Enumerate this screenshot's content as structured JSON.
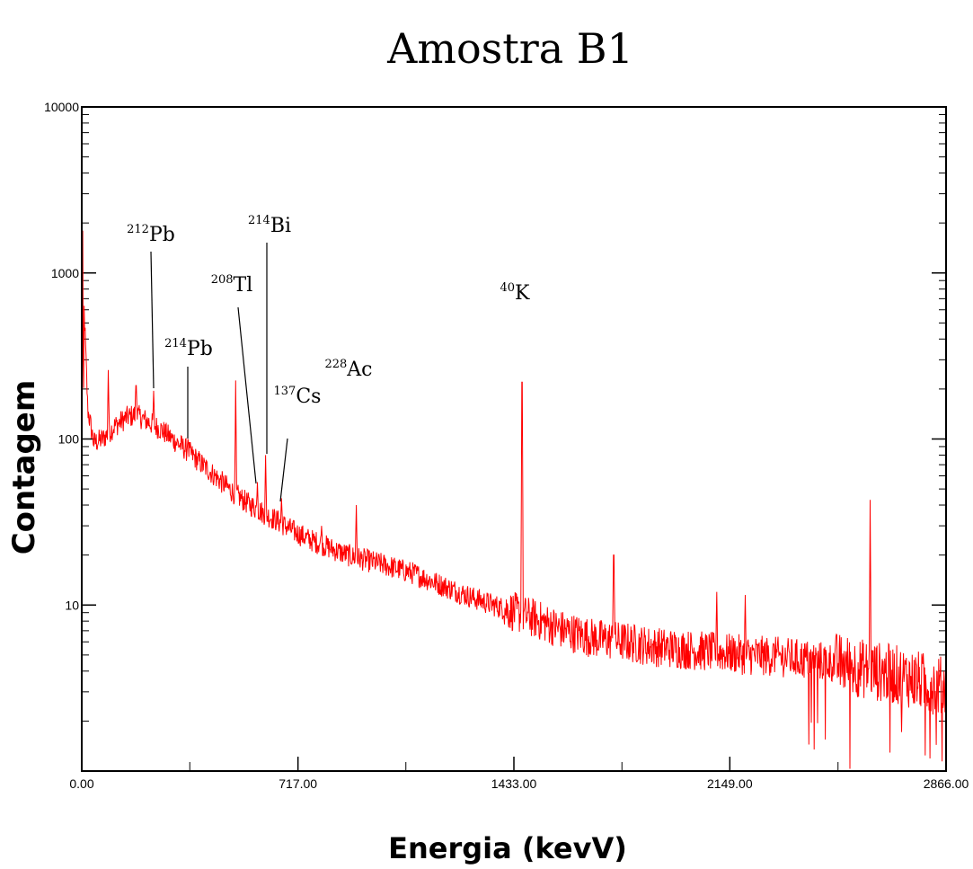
{
  "chart_data": {
    "type": "line",
    "title": "Amostra B1",
    "xlabel": "Energia (kevV)",
    "ylabel": "Contagem",
    "xlim": [
      0,
      2866
    ],
    "ylim": [
      1,
      10000
    ],
    "yscale": "log",
    "x_ticks": [
      "0.00",
      "717.00",
      "1433.00",
      "2149.00",
      "2866.00"
    ],
    "y_ticks": [
      "10000",
      "1000",
      "100",
      "10"
    ],
    "series": [
      {
        "color": "#ff0000",
        "baseline": [
          [
            0,
            2
          ],
          [
            8,
            600
          ],
          [
            20,
            150
          ],
          [
            40,
            95
          ],
          [
            70,
            100
          ],
          [
            110,
            120
          ],
          [
            150,
            135
          ],
          [
            180,
            140
          ],
          [
            210,
            130
          ],
          [
            260,
            115
          ],
          [
            300,
            100
          ],
          [
            350,
            85
          ],
          [
            400,
            70
          ],
          [
            450,
            58
          ],
          [
            500,
            48
          ],
          [
            550,
            41
          ],
          [
            600,
            36
          ],
          [
            650,
            32
          ],
          [
            700,
            28
          ],
          [
            750,
            25
          ],
          [
            800,
            23
          ],
          [
            850,
            21
          ],
          [
            900,
            19.5
          ],
          [
            1000,
            17.5
          ],
          [
            1100,
            15.5
          ],
          [
            1200,
            13
          ],
          [
            1300,
            11
          ],
          [
            1400,
            9.5
          ],
          [
            1500,
            8.3
          ],
          [
            1600,
            7
          ],
          [
            1700,
            6.3
          ],
          [
            1800,
            6
          ],
          [
            1900,
            5.6
          ],
          [
            2000,
            5.4
          ],
          [
            2100,
            5.2
          ],
          [
            2200,
            5
          ],
          [
            2300,
            4.9
          ],
          [
            2400,
            4.7
          ],
          [
            2500,
            4.5
          ],
          [
            2600,
            4.1
          ],
          [
            2700,
            3.8
          ],
          [
            2800,
            3.4
          ],
          [
            2866,
            3.2
          ]
        ],
        "peaks": [
          [
            3,
            1800
          ],
          [
            88,
            260
          ],
          [
            180,
            210
          ],
          [
            239,
            195
          ],
          [
            352,
            100
          ],
          [
            510,
            225
          ],
          [
            583,
            55
          ],
          [
            609,
            80
          ],
          [
            662,
            44
          ],
          [
            795,
            30
          ],
          [
            911,
            40
          ],
          [
            1460,
            220
          ],
          [
            1764,
            20
          ],
          [
            2105,
            12
          ],
          [
            2200,
            11.5
          ],
          [
            2614,
            43
          ]
        ]
      }
    ],
    "annotations": [
      {
        "sup": "212",
        "label": "Pb",
        "energy": 239
      },
      {
        "sup": "214",
        "label": "Bi",
        "energy": 609
      },
      {
        "sup": "208",
        "label": "Tl",
        "energy": 583
      },
      {
        "sup": "214",
        "label": "Pb",
        "energy": 352
      },
      {
        "sup": "137",
        "label": "Cs",
        "energy": 662
      },
      {
        "sup": "228",
        "label": "Ac",
        "energy": 911
      },
      {
        "sup": "40",
        "label": "K",
        "energy": 1460
      }
    ]
  }
}
